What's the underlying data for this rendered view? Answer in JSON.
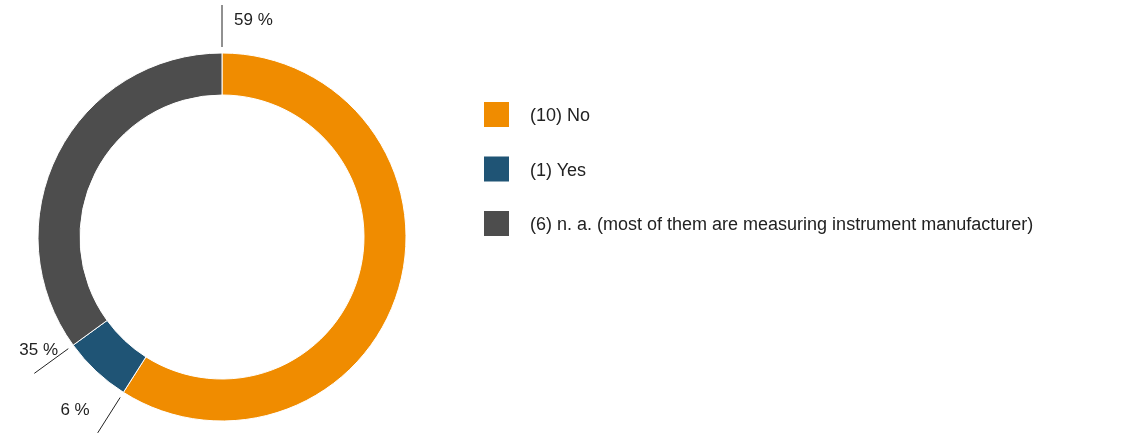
{
  "chart_data": {
    "type": "donut",
    "categories": [
      "(10) No",
      "(1) Yes",
      "(6) n. a. (most of them are measuring instrument manufacturer)"
    ],
    "values": [
      59,
      6,
      35
    ],
    "colors": [
      "#f08c00",
      "#1f5475",
      "#4d4d4d"
    ],
    "value_labels": [
      "59 %",
      "6 %",
      "35 %"
    ],
    "legend": "right"
  }
}
